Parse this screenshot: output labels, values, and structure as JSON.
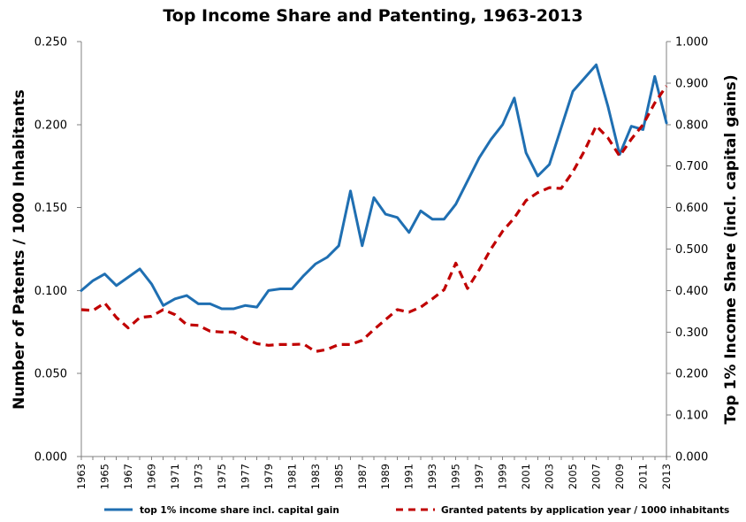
{
  "chart_data": {
    "type": "line",
    "title": "Top Income Share and Patenting, 1963-2013",
    "x": [
      1963,
      1964,
      1965,
      1966,
      1967,
      1968,
      1969,
      1970,
      1971,
      1972,
      1973,
      1974,
      1975,
      1976,
      1977,
      1978,
      1979,
      1980,
      1981,
      1982,
      1983,
      1984,
      1985,
      1986,
      1987,
      1988,
      1989,
      1990,
      1991,
      1992,
      1993,
      1994,
      1995,
      1996,
      1997,
      1998,
      1999,
      2000,
      2001,
      2002,
      2003,
      2004,
      2005,
      2006,
      2007,
      2008,
      2009,
      2010,
      2011,
      2012,
      2013
    ],
    "x_tick_labels": [
      "1963",
      "1965",
      "1967",
      "1969",
      "1971",
      "1973",
      "1975",
      "1977",
      "1979",
      "1981",
      "1983",
      "1985",
      "1987",
      "1989",
      "1991",
      "1993",
      "1995",
      "1997",
      "1999",
      "2001",
      "2003",
      "2005",
      "2007",
      "2009",
      "2011",
      "2013"
    ],
    "y_left": {
      "label": "Number of Patents / 1000 Inhabitants",
      "range": [
        0,
        0.25
      ],
      "ticks": [
        "0.000",
        "0.050",
        "0.100",
        "0.150",
        "0.200",
        "0.250"
      ]
    },
    "y_right": {
      "label": "Top 1% Income Share (incl. capital gains)",
      "range": [
        0,
        1
      ],
      "ticks": [
        "0.000",
        "0.100",
        "0.200",
        "0.300",
        "0.400",
        "0.500",
        "0.600",
        "0.700",
        "0.800",
        "0.900",
        "1.000"
      ]
    },
    "series": [
      {
        "name": "top 1% income share incl. capital gain",
        "axis": "left",
        "color": "#1F6FB2",
        "style": "solid",
        "values": [
          0.1,
          0.106,
          0.11,
          0.103,
          0.108,
          0.113,
          0.104,
          0.091,
          0.095,
          0.097,
          0.092,
          0.092,
          0.089,
          0.089,
          0.091,
          0.09,
          0.1,
          0.101,
          0.101,
          0.109,
          0.116,
          0.12,
          0.127,
          0.16,
          0.127,
          0.156,
          0.146,
          0.144,
          0.135,
          0.148,
          0.143,
          0.143,
          0.152,
          0.166,
          0.18,
          0.191,
          0.2,
          0.216,
          0.183,
          0.169,
          0.176,
          0.198,
          0.22,
          0.228,
          0.236,
          0.211,
          0.182,
          0.199,
          0.197,
          0.229,
          0.201
        ]
      },
      {
        "name": "Granted patents by application year / 1000 inhabitants",
        "axis": "right",
        "color": "#C00000",
        "style": "dashed",
        "values": [
          0.354,
          0.352,
          0.37,
          0.335,
          0.31,
          0.335,
          0.338,
          0.354,
          0.342,
          0.318,
          0.316,
          0.302,
          0.3,
          0.3,
          0.284,
          0.272,
          0.268,
          0.27,
          0.27,
          0.271,
          0.253,
          0.258,
          0.27,
          0.27,
          0.28,
          0.306,
          0.33,
          0.354,
          0.348,
          0.36,
          0.38,
          0.402,
          0.466,
          0.405,
          0.45,
          0.5,
          0.543,
          0.575,
          0.617,
          0.636,
          0.648,
          0.646,
          0.686,
          0.737,
          0.797,
          0.768,
          0.724,
          0.765,
          0.8,
          0.852,
          0.893
        ]
      }
    ],
    "grid": false,
    "legend_position": "bottom"
  }
}
